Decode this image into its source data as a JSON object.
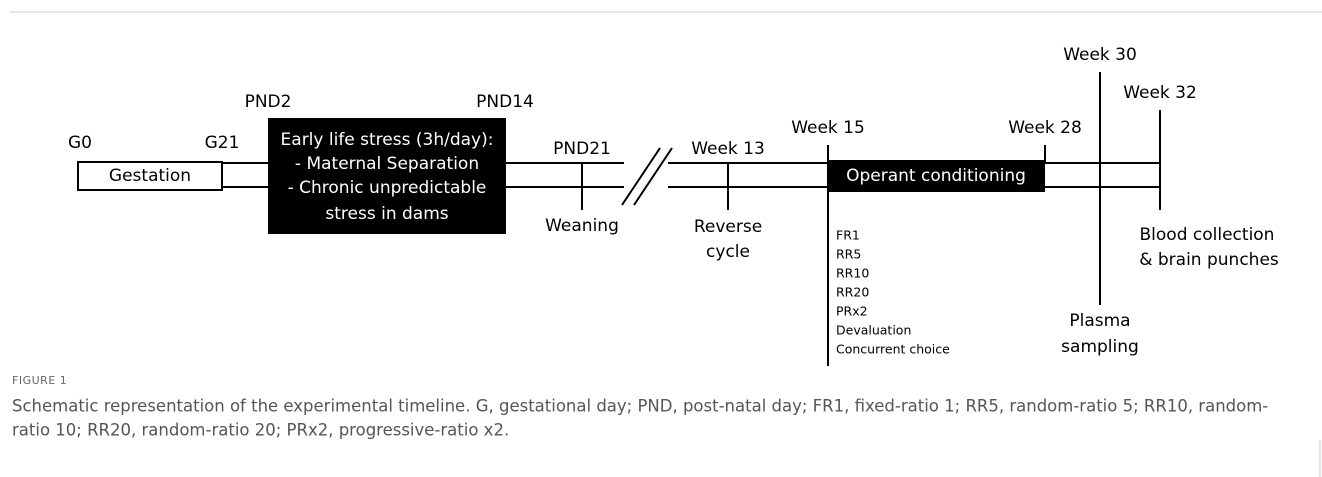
{
  "timeline": {
    "markers": [
      "G0",
      "G21",
      "PND2",
      "PND14",
      "PND21",
      "Week 13",
      "Week 15",
      "Week 28",
      "Week 30",
      "Week 32"
    ],
    "gestation": "Gestation",
    "early_life_stress": [
      "Early life stress (3h/day):",
      "- Maternal Separation",
      "- Chronic unpredictable",
      "stress in dams"
    ],
    "operant": "Operant conditioning",
    "schedules": [
      "FR1",
      "RR5",
      "RR10",
      "RR20",
      "PRx2",
      "Devaluation",
      "Concurrent choice"
    ],
    "events": {
      "weaning": "Weaning",
      "reverse_cycle": [
        "Reverse",
        "cycle"
      ],
      "plasma": [
        "Plasma",
        "sampling"
      ],
      "collection": [
        "Blood collection",
        "& brain punches"
      ]
    }
  },
  "caption": {
    "label": "FIGURE 1",
    "lines": [
      "Schematic representation of the experimental timeline. G, gestational day; PND, post-natal day; FR1, fixed-ratio 1; RR5, random-ratio 5; RR10, random-",
      "ratio 10; RR20, random-ratio 20; PRx2, progressive-ratio x2."
    ]
  }
}
